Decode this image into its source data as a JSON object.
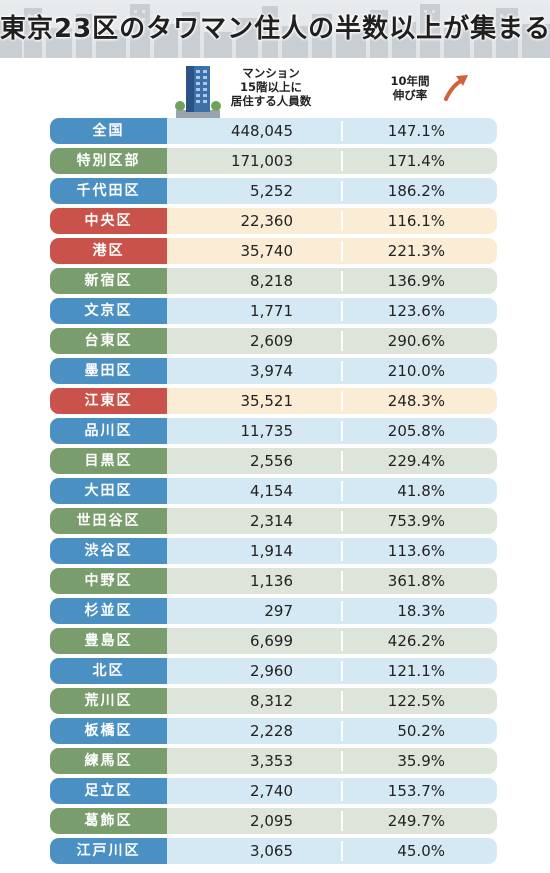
{
  "title": "東京23区のタワマン住人の半数以上が集まる",
  "header": {
    "pop_label_line1": "マンション",
    "pop_label_line2": "15階以上に",
    "pop_label_line3": "居住する人員数",
    "growth_label_line1": "10年間",
    "growth_label_line2": "伸び率"
  },
  "colors": {
    "blue": "#4a90c2",
    "green": "#7a9d6e",
    "red": "#c9534a"
  },
  "chart_data": {
    "type": "table",
    "columns": [
      "",
      "マンション15階以上に居住する人員数",
      "10年間伸び率"
    ],
    "rows": [
      {
        "name": "全国",
        "population": "448,045",
        "growth": "147.1%",
        "color": "blue"
      },
      {
        "name": "特別区部",
        "population": "171,003",
        "growth": "171.4%",
        "color": "green"
      },
      {
        "name": "千代田区",
        "population": "5,252",
        "growth": "186.2%",
        "color": "blue"
      },
      {
        "name": "中央区",
        "population": "22,360",
        "growth": "116.1%",
        "color": "orange"
      },
      {
        "name": "港区",
        "population": "35,740",
        "growth": "221.3%",
        "color": "orange"
      },
      {
        "name": "新宿区",
        "population": "8,218",
        "growth": "136.9%",
        "color": "green"
      },
      {
        "name": "文京区",
        "population": "1,771",
        "growth": "123.6%",
        "color": "blue"
      },
      {
        "name": "台東区",
        "population": "2,609",
        "growth": "290.6%",
        "color": "green"
      },
      {
        "name": "墨田区",
        "population": "3,974",
        "growth": "210.0%",
        "color": "blue"
      },
      {
        "name": "江東区",
        "population": "35,521",
        "growth": "248.3%",
        "color": "orange"
      },
      {
        "name": "品川区",
        "population": "11,735",
        "growth": "205.8%",
        "color": "blue"
      },
      {
        "name": "目黒区",
        "population": "2,556",
        "growth": "229.4%",
        "color": "green"
      },
      {
        "name": "大田区",
        "population": "4,154",
        "growth": "41.8%",
        "color": "blue"
      },
      {
        "name": "世田谷区",
        "population": "2,314",
        "growth": "753.9%",
        "color": "green"
      },
      {
        "name": "渋谷区",
        "population": "1,914",
        "growth": "113.6%",
        "color": "blue"
      },
      {
        "name": "中野区",
        "population": "1,136",
        "growth": "361.8%",
        "color": "green"
      },
      {
        "name": "杉並区",
        "population": "297",
        "growth": "18.3%",
        "color": "blue"
      },
      {
        "name": "豊島区",
        "population": "6,699",
        "growth": "426.2%",
        "color": "green"
      },
      {
        "name": "北区",
        "population": "2,960",
        "growth": "121.1%",
        "color": "blue"
      },
      {
        "name": "荒川区",
        "population": "8,312",
        "growth": "122.5%",
        "color": "green"
      },
      {
        "name": "板橋区",
        "population": "2,228",
        "growth": "50.2%",
        "color": "blue"
      },
      {
        "name": "練馬区",
        "population": "3,353",
        "growth": "35.9%",
        "color": "green"
      },
      {
        "name": "足立区",
        "population": "2,740",
        "growth": "153.7%",
        "color": "blue"
      },
      {
        "name": "葛飾区",
        "population": "2,095",
        "growth": "249.7%",
        "color": "green"
      },
      {
        "name": "江戸川区",
        "population": "3,065",
        "growth": "45.0%",
        "color": "blue"
      }
    ]
  }
}
